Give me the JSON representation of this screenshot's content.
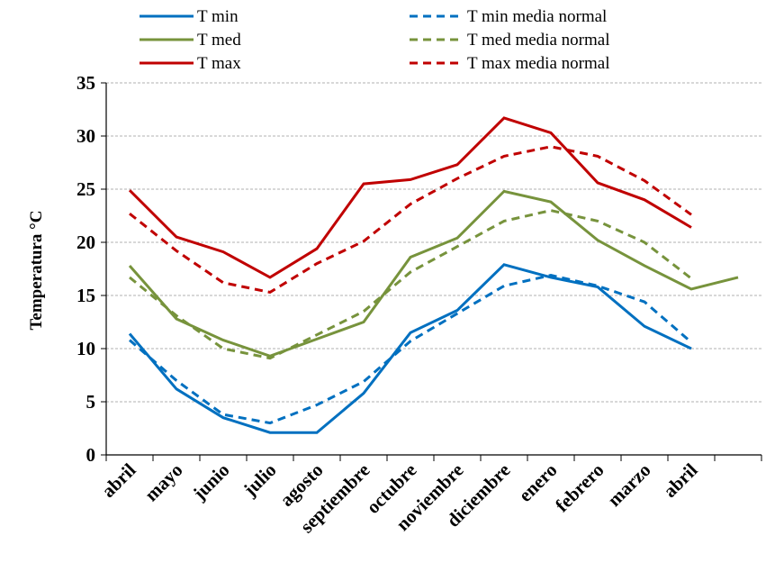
{
  "chart_data": {
    "type": "line",
    "ylabel": "Temperatura  °C",
    "categories": [
      "abril",
      "mayo",
      "junio",
      "julio",
      "agosto",
      "septiembre",
      "octubre",
      "noviembre",
      "diciembre",
      "enero",
      "febrero",
      "marzo",
      "abril",
      null
    ],
    "series": [
      {
        "name": "T min",
        "color": "#0070c0",
        "style": "solid",
        "values": [
          11.4,
          6.2,
          3.5,
          2.1,
          2.1,
          5.8,
          11.5,
          13.6,
          17.9,
          16.7,
          15.8,
          12.1,
          10.0,
          null
        ]
      },
      {
        "name": "T min media normal",
        "color": "#0070c0",
        "style": "dashed",
        "values": [
          10.8,
          7.0,
          3.8,
          3.0,
          4.7,
          6.9,
          10.7,
          13.3,
          15.9,
          16.9,
          15.9,
          14.4,
          10.6,
          null
        ]
      },
      {
        "name": "T med",
        "color": "#77933c",
        "style": "solid",
        "values": [
          17.8,
          12.8,
          10.8,
          9.3,
          10.9,
          12.5,
          18.6,
          20.4,
          24.8,
          23.8,
          20.2,
          17.8,
          15.6,
          16.7
        ]
      },
      {
        "name": "T med media normal",
        "color": "#77933c",
        "style": "dashed",
        "values": [
          16.7,
          13.1,
          10.0,
          9.1,
          11.3,
          13.5,
          17.2,
          19.6,
          22.0,
          23.0,
          22.0,
          20.0,
          16.6,
          null
        ]
      },
      {
        "name": "T max",
        "color": "#c00000",
        "style": "solid",
        "values": [
          24.9,
          20.5,
          19.1,
          16.7,
          19.4,
          25.5,
          25.9,
          27.3,
          31.7,
          30.3,
          25.6,
          24.0,
          21.4,
          null
        ]
      },
      {
        "name": "T max media normal",
        "color": "#c00000",
        "style": "dashed",
        "values": [
          22.7,
          19.2,
          16.2,
          15.3,
          18.0,
          20.1,
          23.6,
          26.0,
          28.1,
          29.0,
          28.1,
          25.8,
          22.6,
          null
        ]
      }
    ],
    "ylim": [
      0,
      35
    ],
    "yticks": [
      0,
      5,
      10,
      15,
      20,
      25,
      30,
      35
    ],
    "grid": true
  }
}
